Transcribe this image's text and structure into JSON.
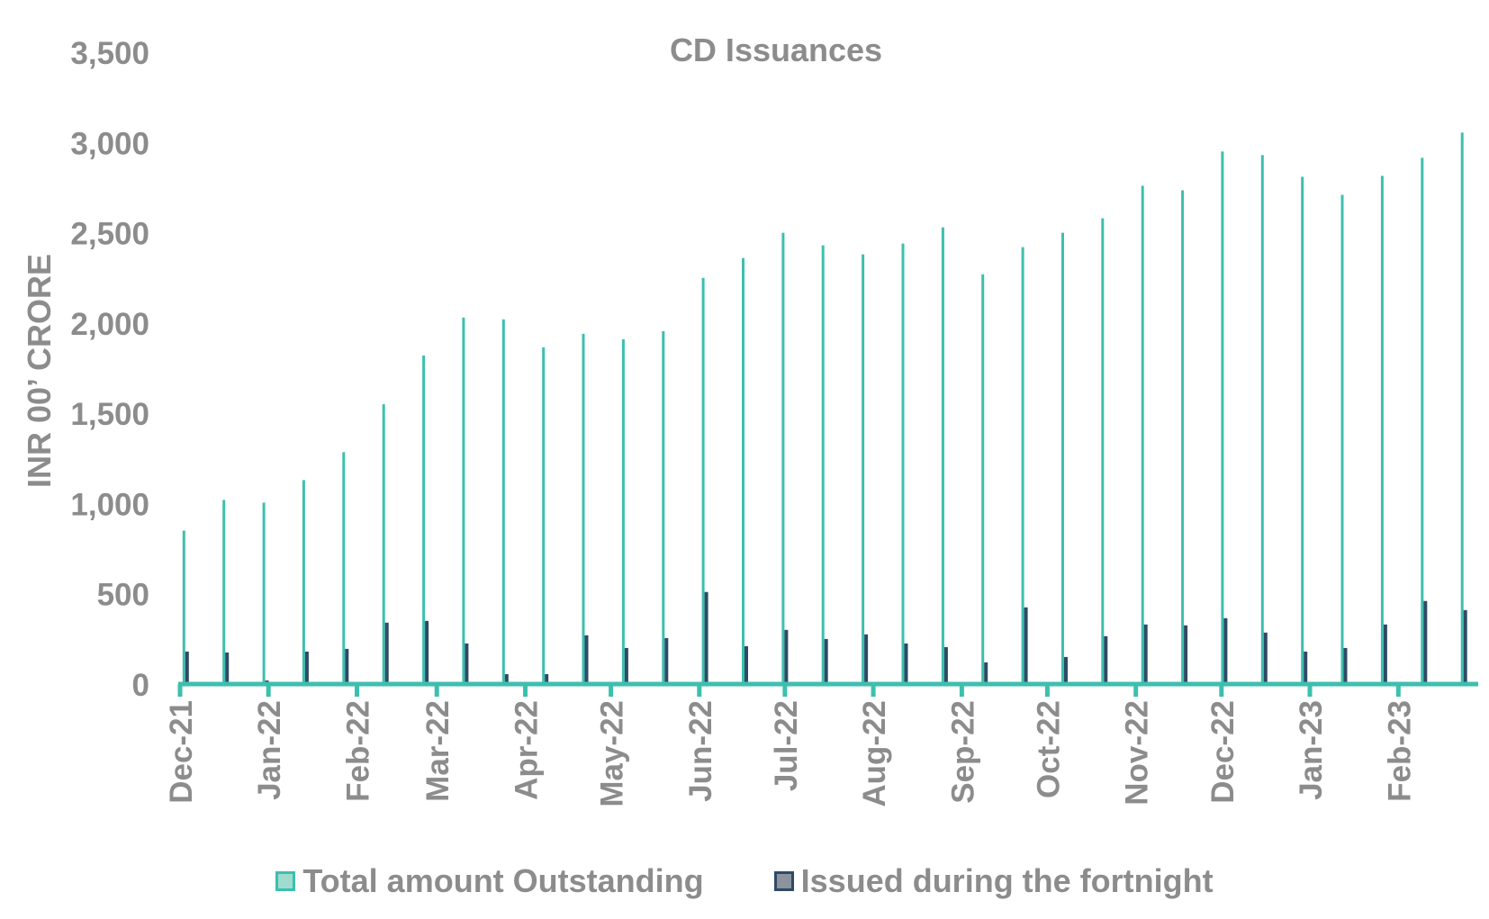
{
  "chart_data": {
    "type": "bar",
    "title": "CD Issuances",
    "ylabel": "INR 00’ CRORE",
    "xlabel": "",
    "ylim": [
      0,
      3500
    ],
    "yticks": [
      "0",
      "500",
      "1,000",
      "1,500",
      "2,000",
      "2,500",
      "3,000",
      "3,500"
    ],
    "x_tick_labels": [
      "Dec-21",
      "Jan-22",
      "Feb-22",
      "Mar-22",
      "Apr-22",
      "May-22",
      "Jun-22",
      "Jul-22",
      "Aug-22",
      "Sep-22",
      "Oct-22",
      "Nov-22",
      "Dec-22",
      "Jan-23",
      "Feb-23"
    ],
    "x_dates": [
      "2021-12-03",
      "2021-12-17",
      "2021-12-31",
      "2022-01-14",
      "2022-01-28",
      "2022-02-11",
      "2022-02-25",
      "2022-03-11",
      "2022-03-25",
      "2022-04-08",
      "2022-04-22",
      "2022-05-06",
      "2022-05-20",
      "2022-06-03",
      "2022-06-17",
      "2022-07-01",
      "2022-07-15",
      "2022-07-29",
      "2022-08-12",
      "2022-08-26",
      "2022-09-09",
      "2022-09-23",
      "2022-10-07",
      "2022-10-21",
      "2022-11-04",
      "2022-11-18",
      "2022-12-02",
      "2022-12-16",
      "2022-12-30",
      "2023-01-13",
      "2023-01-27",
      "2023-02-10",
      "2023-02-24"
    ],
    "legend_position": "bottom",
    "grid": false,
    "series": [
      {
        "name": "Total amount Outstanding",
        "color": "#3dbfae",
        "values": [
          850,
          1020,
          1005,
          1130,
          1285,
          1550,
          1820,
          2030,
          2020,
          1865,
          1940,
          1910,
          1955,
          2250,
          2360,
          2500,
          2430,
          2380,
          2440,
          2530,
          2270,
          2420,
          2500,
          2580,
          2760,
          2735,
          2950,
          2930,
          2810,
          2710,
          2815,
          2915,
          3055
        ]
      },
      {
        "name": "Issued during the fortnight",
        "color": "#2e4a66",
        "values": [
          180,
          175,
          20,
          180,
          195,
          340,
          350,
          225,
          55,
          55,
          270,
          200,
          255,
          510,
          210,
          300,
          250,
          275,
          225,
          205,
          120,
          425,
          150,
          265,
          330,
          325,
          365,
          285,
          180,
          200,
          330,
          460,
          410
        ]
      }
    ]
  },
  "colors": {
    "axis_text": "#8c8c8c",
    "baseline": "#3dbfae",
    "total_swatch_fill": "#9fdccf",
    "total_swatch_border": "#3dbfae",
    "issued_swatch_fill": "#8c939e",
    "issued_swatch_border": "#2e4a66"
  }
}
